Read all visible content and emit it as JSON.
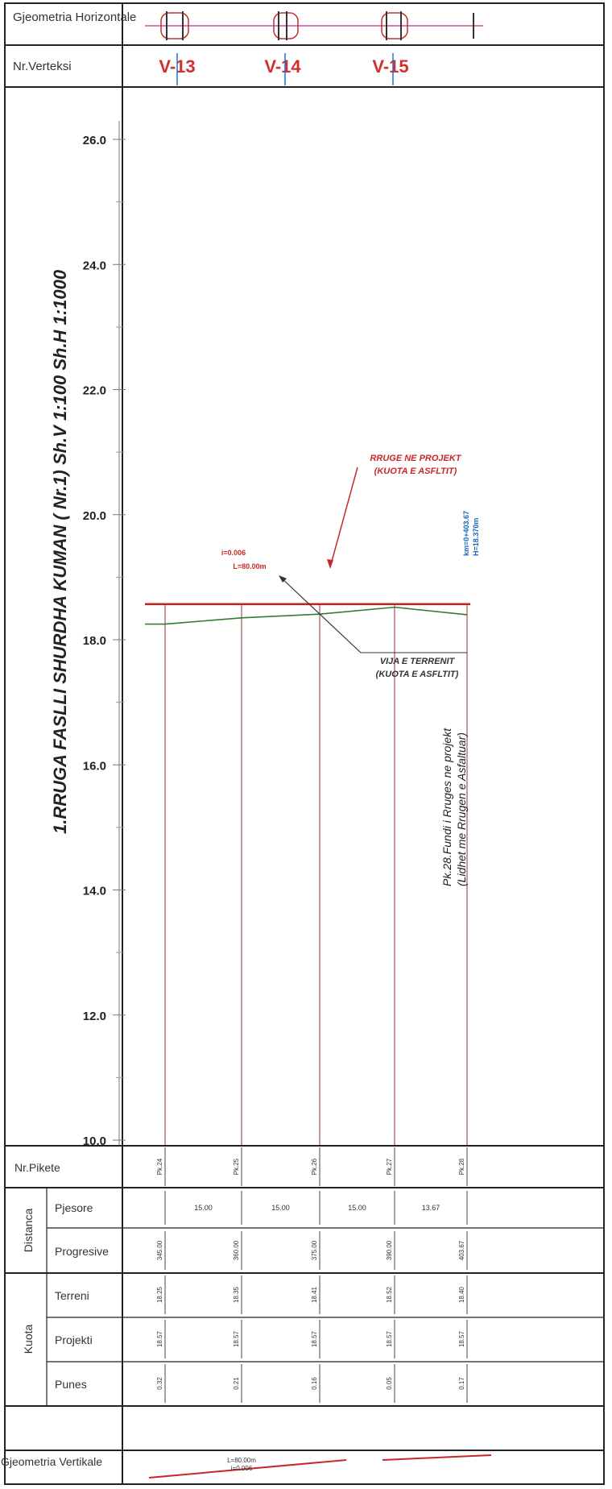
{
  "header": {
    "horizontal_geometry_label": "Gjeometria Horizontale",
    "vertex_row_label": "Nr.Verteksi",
    "vertices": [
      "V-13",
      "V-14",
      "V-15"
    ]
  },
  "drawing": {
    "title": "1.RRUGA FASLLI SHURDHA KUMAN ( Nr.1) Sh.V 1:100  Sh.H 1:1000",
    "annotations": {
      "road_design": [
        "RRUGE NE PROJEKT",
        "(KUOTA E ASFLTIT)"
      ],
      "terrain": [
        "VIJA E TERRENIT",
        "(KUOTA E ASFLTIT)"
      ],
      "grade_label": "i=0.006",
      "length_label": "L=80.00m",
      "end_chainage": "km=0+403.67",
      "end_elevation": "H=18.370m",
      "end_note": [
        "Pk.28.Fundi i Rruges ne projekt",
        "(Lidhet me Rrugen e Asfaltuar)"
      ]
    }
  },
  "chart_data": {
    "type": "line",
    "title": "1.RRUGA FASLLI SHURDHA KUMAN ( Nr.1) Sh.V 1:100  Sh.H 1:1000",
    "ylim": [
      10.0,
      27.0
    ],
    "yticks": [
      "26.0",
      "24.0",
      "22.0",
      "20.0",
      "18.0",
      "16.0",
      "14.0",
      "12.0",
      "10.0"
    ],
    "y_tick_values": [
      26,
      24,
      22,
      20,
      18,
      16,
      14,
      12,
      10
    ],
    "grid": false,
    "x": [
      345.0,
      360.0,
      375.0,
      390.0,
      403.67
    ],
    "series": [
      {
        "name": "RRUGE NE PROJEKT",
        "values": [
          18.57,
          18.57,
          18.57,
          18.57,
          18.57
        ],
        "color": "#cc1f1f"
      },
      {
        "name": "VIJA E TERRENIT",
        "values": [
          18.25,
          18.35,
          18.41,
          18.52,
          18.4
        ],
        "color": "#2e7d32"
      }
    ]
  },
  "table": {
    "station_label": "Nr.Pikete",
    "distance_group": "Distanca",
    "partial_label": "Pjesore",
    "progressive_label": "Progresive",
    "elevation_group": "Kuota",
    "terrain_label": "Terreni",
    "design_label": "Projekti",
    "works_label": "Punes",
    "vertical_geometry_label": "Gjeometria Vertikale",
    "stations": [
      "Pk.24",
      "Pk.25",
      "Pk.26",
      "Pk.27",
      "Pk.28"
    ],
    "partials": [
      "15.00",
      "15.00",
      "15.00",
      "13.67"
    ],
    "progressive": [
      "345.00",
      "360.00",
      "375.00",
      "390.00",
      "403.67"
    ],
    "terrain": [
      "18.25",
      "18.35",
      "18.41",
      "18.52",
      "18.40"
    ],
    "design": [
      "18.57",
      "18.57",
      "18.57",
      "18.57",
      "18.57"
    ],
    "works": [
      "0.32",
      "0.21",
      "0.16",
      "0.05",
      "0.17"
    ],
    "vertical_grade": [
      "L=80.00m",
      "i=0.006"
    ]
  },
  "colors": {
    "vertex_label": "#d32f2f",
    "design_line": "#cc1f1f",
    "terrain_line": "#2e7d32",
    "station_line": "#b05050",
    "vertex_line": "#1976d2",
    "annotation_red": "#c62828",
    "annotation_blue": "#1565c0"
  }
}
